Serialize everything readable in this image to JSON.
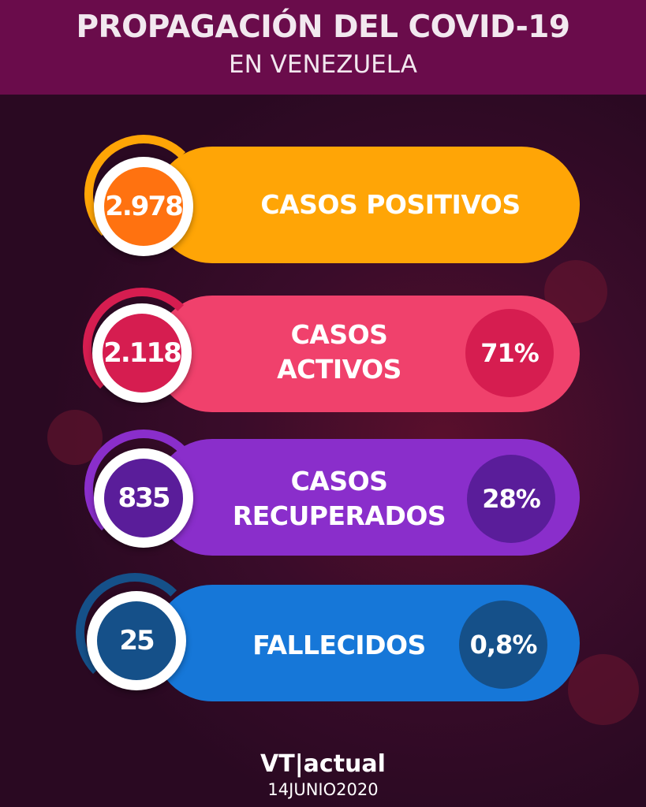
{
  "header": {
    "title": "PROPAGACIÓN DEL COVID-19",
    "subtitle": "EN VENEZUELA"
  },
  "stats": [
    {
      "value": "2.978",
      "label": "CASOS POSITIVOS",
      "percent": null,
      "colors": {
        "pill": "#ffa506",
        "circle": "#ff7210"
      }
    },
    {
      "value": "2.118",
      "label_line1": "CASOS",
      "label_line2": "ACTIVOS",
      "percent": "71%",
      "colors": {
        "pill": "#f0416c",
        "circle": "#d61d50"
      }
    },
    {
      "value": "835",
      "label_line1": "CASOS",
      "label_line2": "RECUPERADOS",
      "percent": "28%",
      "colors": {
        "pill": "#8a2ecb",
        "circle": "#5a1d9a"
      }
    },
    {
      "value": "25",
      "label": "FALLECIDOS",
      "percent": "0,8%",
      "colors": {
        "pill": "#1677d8",
        "circle": "#155089"
      }
    }
  ],
  "footer": {
    "logo": "VT|actual",
    "date": "14JUNIO2020"
  },
  "colors": {
    "background": "#2c0a25",
    "header": "#6a0c4b"
  }
}
